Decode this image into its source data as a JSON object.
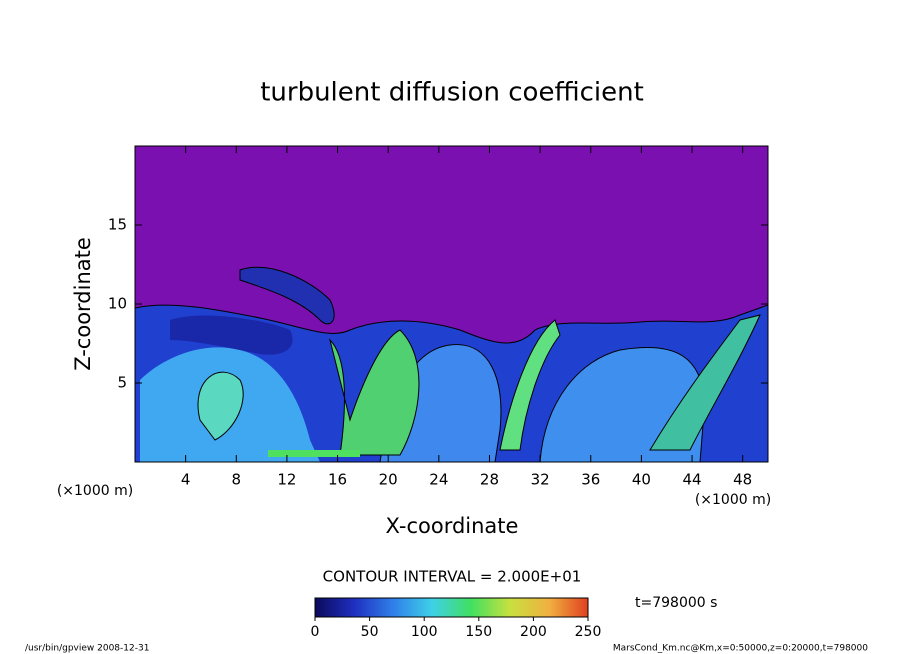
{
  "chart_data": {
    "type": "contour",
    "title": "turbulent diffusion coefficient",
    "xlabel": "X-coordinate",
    "ylabel": "Z-coordinate",
    "xunit": "(×1000 m)",
    "yunit": "(×1000 m)",
    "xlim": [
      0,
      50
    ],
    "xticks": [
      4,
      8,
      12,
      16,
      20,
      24,
      28,
      32,
      36,
      40,
      44,
      48
    ],
    "ylim": [
      0,
      20
    ],
    "yticks": [
      5,
      10,
      15
    ],
    "contour_interval": "CONTOUR INTERVAL = 2.000E+01",
    "time_label": "t=798000 s",
    "colorbar": {
      "lim": [
        0,
        250
      ],
      "ticks": [
        0,
        50,
        100,
        150,
        200,
        250
      ],
      "colors": [
        "#0a0a5a",
        "#1f2fc0",
        "#2f7fe8",
        "#3fd0e8",
        "#40e060",
        "#c8e040",
        "#f0b040",
        "#e04020"
      ]
    },
    "footer_left": "/usr/bin/gpview  2008-12-31",
    "footer_right": "MarsCond_Km.nc@Km,x=0:50000,z=0:20000,t=798000"
  }
}
